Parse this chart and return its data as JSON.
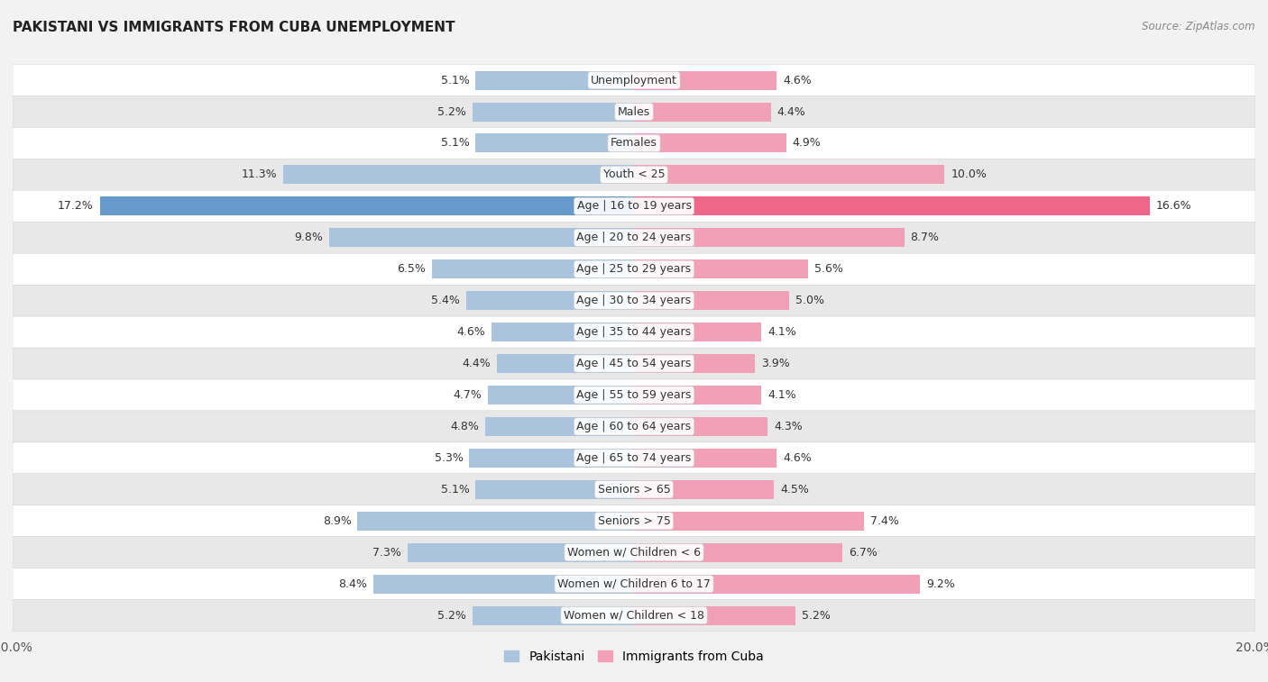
{
  "title": "PAKISTANI VS IMMIGRANTS FROM CUBA UNEMPLOYMENT",
  "source": "Source: ZipAtlas.com",
  "categories": [
    "Unemployment",
    "Males",
    "Females",
    "Youth < 25",
    "Age | 16 to 19 years",
    "Age | 20 to 24 years",
    "Age | 25 to 29 years",
    "Age | 30 to 34 years",
    "Age | 35 to 44 years",
    "Age | 45 to 54 years",
    "Age | 55 to 59 years",
    "Age | 60 to 64 years",
    "Age | 65 to 74 years",
    "Seniors > 65",
    "Seniors > 75",
    "Women w/ Children < 6",
    "Women w/ Children 6 to 17",
    "Women w/ Children < 18"
  ],
  "pakistani": [
    5.1,
    5.2,
    5.1,
    11.3,
    17.2,
    9.8,
    6.5,
    5.4,
    4.6,
    4.4,
    4.7,
    4.8,
    5.3,
    5.1,
    8.9,
    7.3,
    8.4,
    5.2
  ],
  "cuba": [
    4.6,
    4.4,
    4.9,
    10.0,
    16.6,
    8.7,
    5.6,
    5.0,
    4.1,
    3.9,
    4.1,
    4.3,
    4.6,
    4.5,
    7.4,
    6.7,
    9.2,
    5.2
  ],
  "pakistani_color": "#aac4de",
  "cuba_color": "#f2a0b8",
  "pakistani_highlight": "#6699cc",
  "cuba_highlight": "#ee6688",
  "axis_max": 20.0,
  "bg_color": "#f2f2f2",
  "row_color_even": "#ffffff",
  "row_color_odd": "#e8e8e8",
  "legend_pakistani": "Pakistani",
  "legend_cuba": "Immigrants from Cuba",
  "title_fontsize": 11,
  "label_fontsize": 9,
  "value_fontsize": 9
}
